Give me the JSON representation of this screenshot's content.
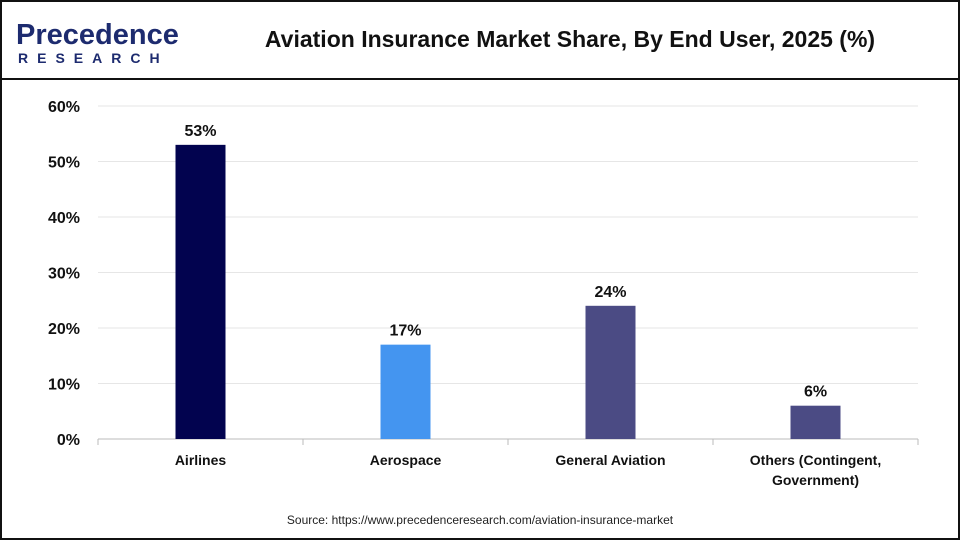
{
  "logo": {
    "line1": "Precedence",
    "line2": "RESEARCH"
  },
  "title": "Aviation Insurance Market Share, By End User, 2025 (%)",
  "source": "Source: https://www.precedenceresearch.com/aviation-insurance-market",
  "chart_data": {
    "type": "bar",
    "title": "Aviation Insurance Market Share, By End User, 2025 (%)",
    "categories": [
      "Airlines",
      "Aerospace",
      "General Aviation",
      "Others (Contingent, Government)"
    ],
    "category_lines": [
      [
        "Airlines"
      ],
      [
        "Aerospace"
      ],
      [
        "General Aviation"
      ],
      [
        "Others (Contingent,",
        "Government)"
      ]
    ],
    "values": [
      53,
      17,
      24,
      6
    ],
    "data_labels": [
      "53%",
      "17%",
      "24%",
      "6%"
    ],
    "colors": [
      "#02034f",
      "#4495f0",
      "#4b4b84",
      "#4b4b84"
    ],
    "ylim": [
      0,
      60
    ],
    "yticks": [
      0,
      10,
      20,
      30,
      40,
      50,
      60
    ],
    "ytick_labels": [
      "0%",
      "10%",
      "20%",
      "30%",
      "40%",
      "50%",
      "60%"
    ],
    "grid": true,
    "xlabel": "",
    "ylabel": ""
  }
}
